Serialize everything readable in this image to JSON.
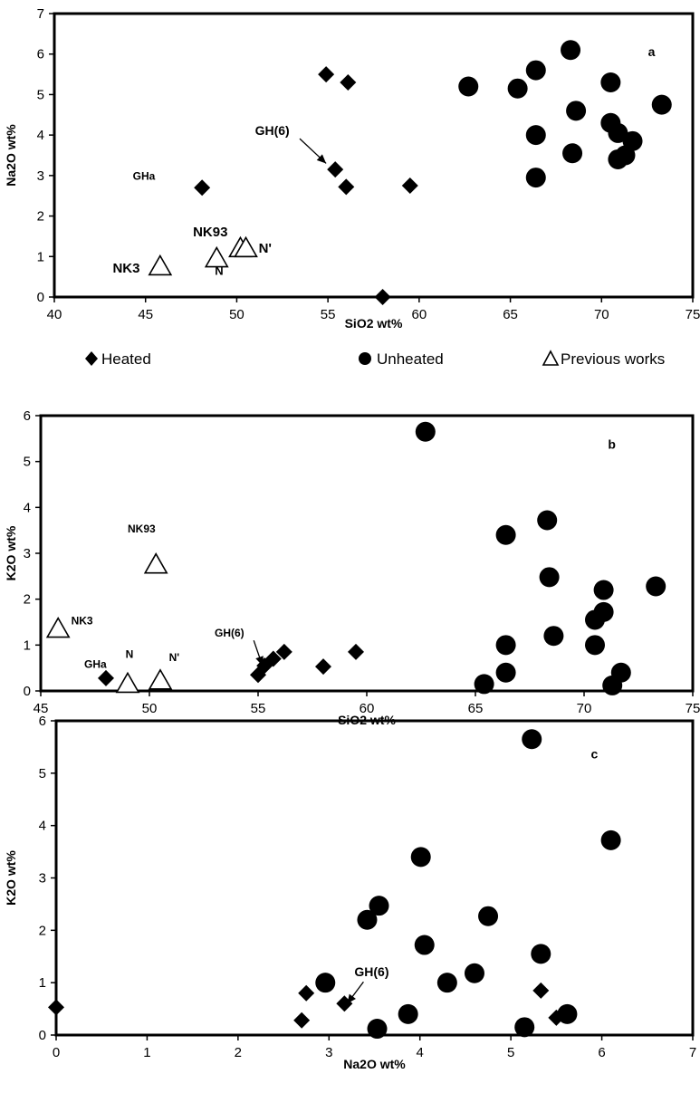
{
  "legend": {
    "items": [
      {
        "marker": "diamond",
        "label": "Heated"
      },
      {
        "marker": "circle",
        "label": "Unheated"
      },
      {
        "marker": "triangle",
        "label": "Previous works"
      }
    ]
  },
  "colors": {
    "marker": "#000000",
    "axis": "#000000",
    "background": "#ffffff"
  },
  "chart_data": [
    {
      "type": "scatter",
      "panel_label": "a",
      "xlabel": "SiO2 wt%",
      "ylabel": "Na2O wt%",
      "xlim": [
        40,
        75
      ],
      "ylim": [
        0,
        7
      ],
      "xticks": [
        40,
        45,
        50,
        55,
        60,
        65,
        70,
        75
      ],
      "yticks": [
        0,
        1,
        2,
        3,
        4,
        5,
        6,
        7
      ],
      "grid": false,
      "legend_position": "bottom",
      "series": [
        {
          "name": "Heated",
          "marker": "diamond",
          "x": [
            48.1,
            54.9,
            56.1,
            55.4,
            56.0,
            59.5,
            58.0
          ],
          "y": [
            2.7,
            5.5,
            5.3,
            3.15,
            2.72,
            2.75,
            0.0
          ]
        },
        {
          "name": "Unheated",
          "marker": "circle",
          "x": [
            62.7,
            65.4,
            66.4,
            66.4,
            66.4,
            68.3,
            68.6,
            68.4,
            70.5,
            70.5,
            70.9,
            71.3,
            70.9,
            71.7,
            73.3
          ],
          "y": [
            5.2,
            5.15,
            5.6,
            4.0,
            2.95,
            6.1,
            4.6,
            3.55,
            5.3,
            4.3,
            4.05,
            3.5,
            3.4,
            3.85,
            4.75
          ]
        },
        {
          "name": "Previous works",
          "marker": "triangle",
          "x": [
            45.8,
            48.9,
            50.2,
            50.5
          ],
          "y": [
            0.75,
            0.95,
            1.2,
            1.2
          ]
        }
      ],
      "annotations": [
        {
          "text": "GH(6)",
          "x": 51.0,
          "y": 4.0,
          "arrow_to": [
            54.9,
            3.3
          ]
        },
        {
          "text": "GHa",
          "x": 44.3,
          "y": 2.9
        },
        {
          "text": "NK93",
          "x": 47.6,
          "y": 1.5
        },
        {
          "text": "NK3",
          "x": 43.2,
          "y": 0.6
        },
        {
          "text": "N",
          "x": 48.8,
          "y": 0.55
        },
        {
          "text": "N'",
          "x": 51.2,
          "y": 1.1
        }
      ]
    },
    {
      "type": "scatter",
      "panel_label": "b",
      "xlabel": "SiO2 wt%",
      "ylabel": "K2O wt%",
      "xlim": [
        45,
        75
      ],
      "ylim": [
        0,
        6
      ],
      "xticks": [
        45,
        50,
        55,
        60,
        65,
        70,
        75
      ],
      "yticks": [
        0,
        1,
        2,
        3,
        4,
        5,
        6
      ],
      "grid": false,
      "series": [
        {
          "name": "Heated",
          "marker": "diamond",
          "x": [
            48.0,
            55.0,
            55.3,
            55.7,
            56.2,
            58.0,
            59.5
          ],
          "y": [
            0.28,
            0.35,
            0.55,
            0.7,
            0.85,
            0.53,
            0.85
          ]
        },
        {
          "name": "Unheated",
          "marker": "circle",
          "x": [
            62.7,
            65.4,
            66.4,
            66.4,
            66.4,
            68.3,
            68.4,
            68.6,
            70.5,
            70.5,
            70.9,
            70.9,
            71.3,
            71.7,
            73.3
          ],
          "y": [
            5.65,
            0.15,
            3.4,
            1.0,
            0.4,
            3.72,
            2.48,
            1.2,
            1.55,
            1.0,
            2.2,
            1.72,
            0.12,
            0.4,
            2.28
          ]
        },
        {
          "name": "Previous works",
          "marker": "triangle",
          "x": [
            45.8,
            49.0,
            50.3,
            50.5
          ],
          "y": [
            1.35,
            0.15,
            2.75,
            0.22
          ]
        }
      ],
      "annotations": [
        {
          "text": "NK93",
          "x": 49.0,
          "y": 3.45
        },
        {
          "text": "NK3",
          "x": 46.4,
          "y": 1.45
        },
        {
          "text": "N",
          "x": 48.9,
          "y": 0.72
        },
        {
          "text": "N'",
          "x": 50.9,
          "y": 0.65
        },
        {
          "text": "GHa",
          "x": 47.0,
          "y": 0.5
        },
        {
          "text": "GH(6)",
          "x": 53.0,
          "y": 1.18,
          "arrow_to": [
            55.2,
            0.55
          ]
        }
      ]
    },
    {
      "type": "scatter",
      "panel_label": "c",
      "xlabel": "Na2O wt%",
      "ylabel": "K2O wt%",
      "xlim": [
        0,
        7
      ],
      "ylim": [
        0,
        6
      ],
      "xticks": [
        0,
        1,
        2,
        3,
        4,
        5,
        6,
        7
      ],
      "yticks": [
        0,
        1,
        2,
        3,
        4,
        5,
        6
      ],
      "grid": false,
      "series": [
        {
          "name": "Heated",
          "marker": "diamond",
          "x": [
            0.0,
            2.7,
            2.75,
            3.17,
            5.33,
            5.5
          ],
          "y": [
            0.53,
            0.28,
            0.8,
            0.6,
            0.85,
            0.33
          ]
        },
        {
          "name": "Unheated",
          "marker": "circle",
          "x": [
            5.23,
            6.1,
            4.01,
            3.42,
            3.55,
            4.05,
            4.75,
            2.96,
            4.3,
            4.6,
            5.33,
            5.62,
            3.53,
            3.87,
            5.15
          ],
          "y": [
            5.65,
            3.72,
            3.4,
            2.2,
            2.47,
            1.72,
            2.27,
            1.0,
            1.0,
            1.18,
            1.55,
            0.4,
            0.12,
            0.4,
            0.15
          ]
        }
      ],
      "annotations": [
        {
          "text": "GH(6)",
          "x": 3.28,
          "y": 1.12,
          "arrow_to": [
            3.2,
            0.6
          ]
        }
      ]
    }
  ]
}
